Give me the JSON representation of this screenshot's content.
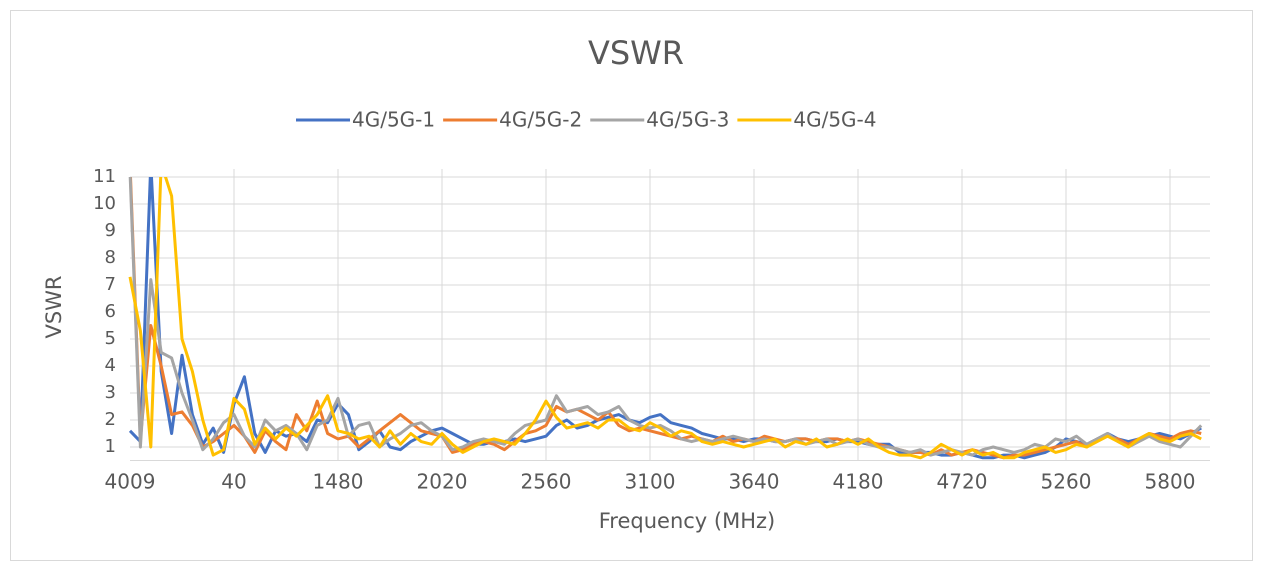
{
  "chart_data": {
    "type": "line",
    "title": "VSWR",
    "x_label": "Frequency (MHz)",
    "y_label": "VSWR",
    "categories": [
      "4009",
      null,
      null,
      null,
      null,
      null,
      null,
      null,
      null,
      null,
      "40",
      null,
      null,
      null,
      null,
      null,
      null,
      null,
      null,
      null,
      "1480",
      null,
      null,
      null,
      null,
      null,
      null,
      null,
      null,
      null,
      "2020",
      null,
      null,
      null,
      null,
      null,
      null,
      null,
      null,
      null,
      "2560",
      null,
      null,
      null,
      null,
      null,
      null,
      null,
      null,
      null,
      "3100",
      null,
      null,
      null,
      null,
      null,
      null,
      null,
      null,
      null,
      "3640",
      null,
      null,
      null,
      null,
      null,
      null,
      null,
      null,
      null,
      "4180",
      null,
      null,
      null,
      null,
      null,
      null,
      null,
      null,
      null,
      "4720",
      null,
      null,
      null,
      null,
      null,
      null,
      null,
      null,
      null,
      "5260",
      null,
      null,
      null,
      null,
      null,
      null,
      null,
      null,
      null,
      "5800",
      null,
      null,
      null
    ],
    "series": [
      {
        "name": "4G/5G-1",
        "color": "#4472c4",
        "values": [
          1.6,
          1.2,
          11.5,
          3.8,
          1.5,
          4.4,
          2.2,
          1.1,
          1.7,
          0.8,
          2.6,
          3.6,
          1.5,
          0.8,
          1.6,
          1.4,
          1.5,
          1.2,
          2.0,
          1.9,
          2.6,
          2.2,
          0.9,
          1.2,
          1.6,
          1.0,
          0.9,
          1.2,
          1.4,
          1.6,
          1.7,
          1.5,
          1.3,
          1.1,
          1.1,
          1.2,
          1.2,
          1.3,
          1.2,
          1.3,
          1.4,
          1.8,
          2.0,
          1.7,
          1.8,
          2.0,
          2.1,
          2.2,
          2.0,
          1.9,
          2.1,
          2.2,
          1.9,
          1.8,
          1.7,
          1.5,
          1.4,
          1.3,
          1.3,
          1.2,
          1.3,
          1.3,
          1.2,
          1.2,
          1.3,
          1.3,
          1.2,
          1.2,
          1.3,
          1.2,
          1.2,
          1.1,
          1.1,
          1.1,
          0.8,
          0.8,
          0.8,
          0.8,
          0.7,
          0.7,
          0.8,
          0.7,
          0.6,
          0.6,
          0.7,
          0.7,
          0.6,
          0.7,
          0.8,
          1.0,
          1.3,
          1.2,
          1.1,
          1.3,
          1.5,
          1.3,
          1.2,
          1.3,
          1.4,
          1.5,
          1.4,
          1.3,
          1.5,
          1.7
        ]
      },
      {
        "name": "4G/5G-2",
        "color": "#ed7d31",
        "values": [
          11.5,
          1.3,
          5.5,
          4.0,
          2.2,
          2.3,
          1.8,
          1.0,
          1.2,
          1.5,
          1.8,
          1.4,
          0.8,
          1.6,
          1.2,
          0.9,
          2.2,
          1.6,
          2.7,
          1.5,
          1.3,
          1.4,
          1.0,
          1.3,
          1.6,
          1.9,
          2.2,
          1.9,
          1.6,
          1.5,
          1.4,
          0.8,
          0.9,
          1.1,
          1.2,
          1.1,
          0.9,
          1.2,
          1.5,
          1.6,
          1.8,
          2.5,
          2.3,
          2.4,
          2.2,
          2.0,
          2.3,
          1.8,
          1.6,
          1.7,
          1.6,
          1.5,
          1.4,
          1.3,
          1.4,
          1.3,
          1.2,
          1.4,
          1.2,
          1.3,
          1.2,
          1.4,
          1.3,
          1.2,
          1.3,
          1.3,
          1.2,
          1.3,
          1.3,
          1.2,
          1.3,
          1.2,
          1.1,
          1.0,
          0.9,
          0.8,
          0.8,
          0.7,
          0.9,
          0.7,
          0.8,
          0.9,
          0.8,
          0.7,
          0.6,
          0.7,
          0.7,
          0.8,
          0.9,
          1.0,
          1.1,
          1.2,
          1.0,
          1.3,
          1.4,
          1.3,
          1.1,
          1.3,
          1.5,
          1.4,
          1.3,
          1.5,
          1.6,
          1.5
        ]
      },
      {
        "name": "4G/5G-3",
        "color": "#a5a5a5",
        "values": [
          11.2,
          1.0,
          7.2,
          4.5,
          4.3,
          3.0,
          2.0,
          0.9,
          1.3,
          1.9,
          2.2,
          1.4,
          1.0,
          2.0,
          1.6,
          1.8,
          1.5,
          0.9,
          1.8,
          2.0,
          2.8,
          1.4,
          1.8,
          1.9,
          1.0,
          1.3,
          1.5,
          1.8,
          1.9,
          1.6,
          1.4,
          0.9,
          1.0,
          1.2,
          1.3,
          1.2,
          1.1,
          1.5,
          1.8,
          1.9,
          2.0,
          2.9,
          2.3,
          2.4,
          2.5,
          2.2,
          2.3,
          2.5,
          2.0,
          1.8,
          1.7,
          1.8,
          1.6,
          1.3,
          1.2,
          1.3,
          1.2,
          1.3,
          1.4,
          1.3,
          1.2,
          1.3,
          1.2,
          1.2,
          1.3,
          1.1,
          1.2,
          1.3,
          1.1,
          1.2,
          1.3,
          1.1,
          1.0,
          1.0,
          0.9,
          0.8,
          0.9,
          0.7,
          0.8,
          0.9,
          0.8,
          0.7,
          0.9,
          1.0,
          0.9,
          0.8,
          0.9,
          1.1,
          1.0,
          1.3,
          1.2,
          1.4,
          1.1,
          1.3,
          1.5,
          1.2,
          1.0,
          1.2,
          1.4,
          1.2,
          1.1,
          1.0,
          1.4,
          1.8
        ]
      },
      {
        "name": "4G/5G-4",
        "color": "#ffc000",
        "values": [
          7.3,
          5.3,
          1.0,
          11.5,
          10.3,
          5.0,
          3.8,
          2.0,
          0.7,
          0.9,
          2.8,
          2.4,
          1.1,
          1.7,
          1.3,
          1.7,
          1.4,
          1.8,
          2.2,
          2.9,
          1.6,
          1.5,
          1.3,
          1.4,
          1.0,
          1.6,
          1.1,
          1.5,
          1.2,
          1.1,
          1.5,
          1.1,
          0.8,
          1.0,
          1.2,
          1.3,
          1.2,
          1.1,
          1.5,
          2.0,
          2.7,
          2.1,
          1.7,
          1.8,
          1.9,
          1.7,
          2.0,
          2.0,
          1.7,
          1.6,
          1.9,
          1.7,
          1.4,
          1.6,
          1.5,
          1.2,
          1.1,
          1.2,
          1.1,
          1.0,
          1.1,
          1.2,
          1.3,
          1.0,
          1.2,
          1.1,
          1.3,
          1.0,
          1.1,
          1.3,
          1.1,
          1.3,
          1.0,
          0.8,
          0.7,
          0.7,
          0.6,
          0.8,
          1.1,
          0.9,
          0.7,
          0.9,
          0.7,
          0.8,
          0.6,
          0.6,
          0.8,
          0.9,
          1.0,
          0.8,
          0.9,
          1.1,
          1.0,
          1.2,
          1.4,
          1.2,
          1.0,
          1.3,
          1.5,
          1.3,
          1.2,
          1.4,
          1.5,
          1.3
        ]
      }
    ],
    "ylim": [
      0.5,
      11
    ],
    "yticks": [
      1,
      2,
      3,
      4,
      5,
      6,
      7,
      8,
      9,
      10,
      11
    ],
    "grid": true,
    "legend": "top"
  }
}
